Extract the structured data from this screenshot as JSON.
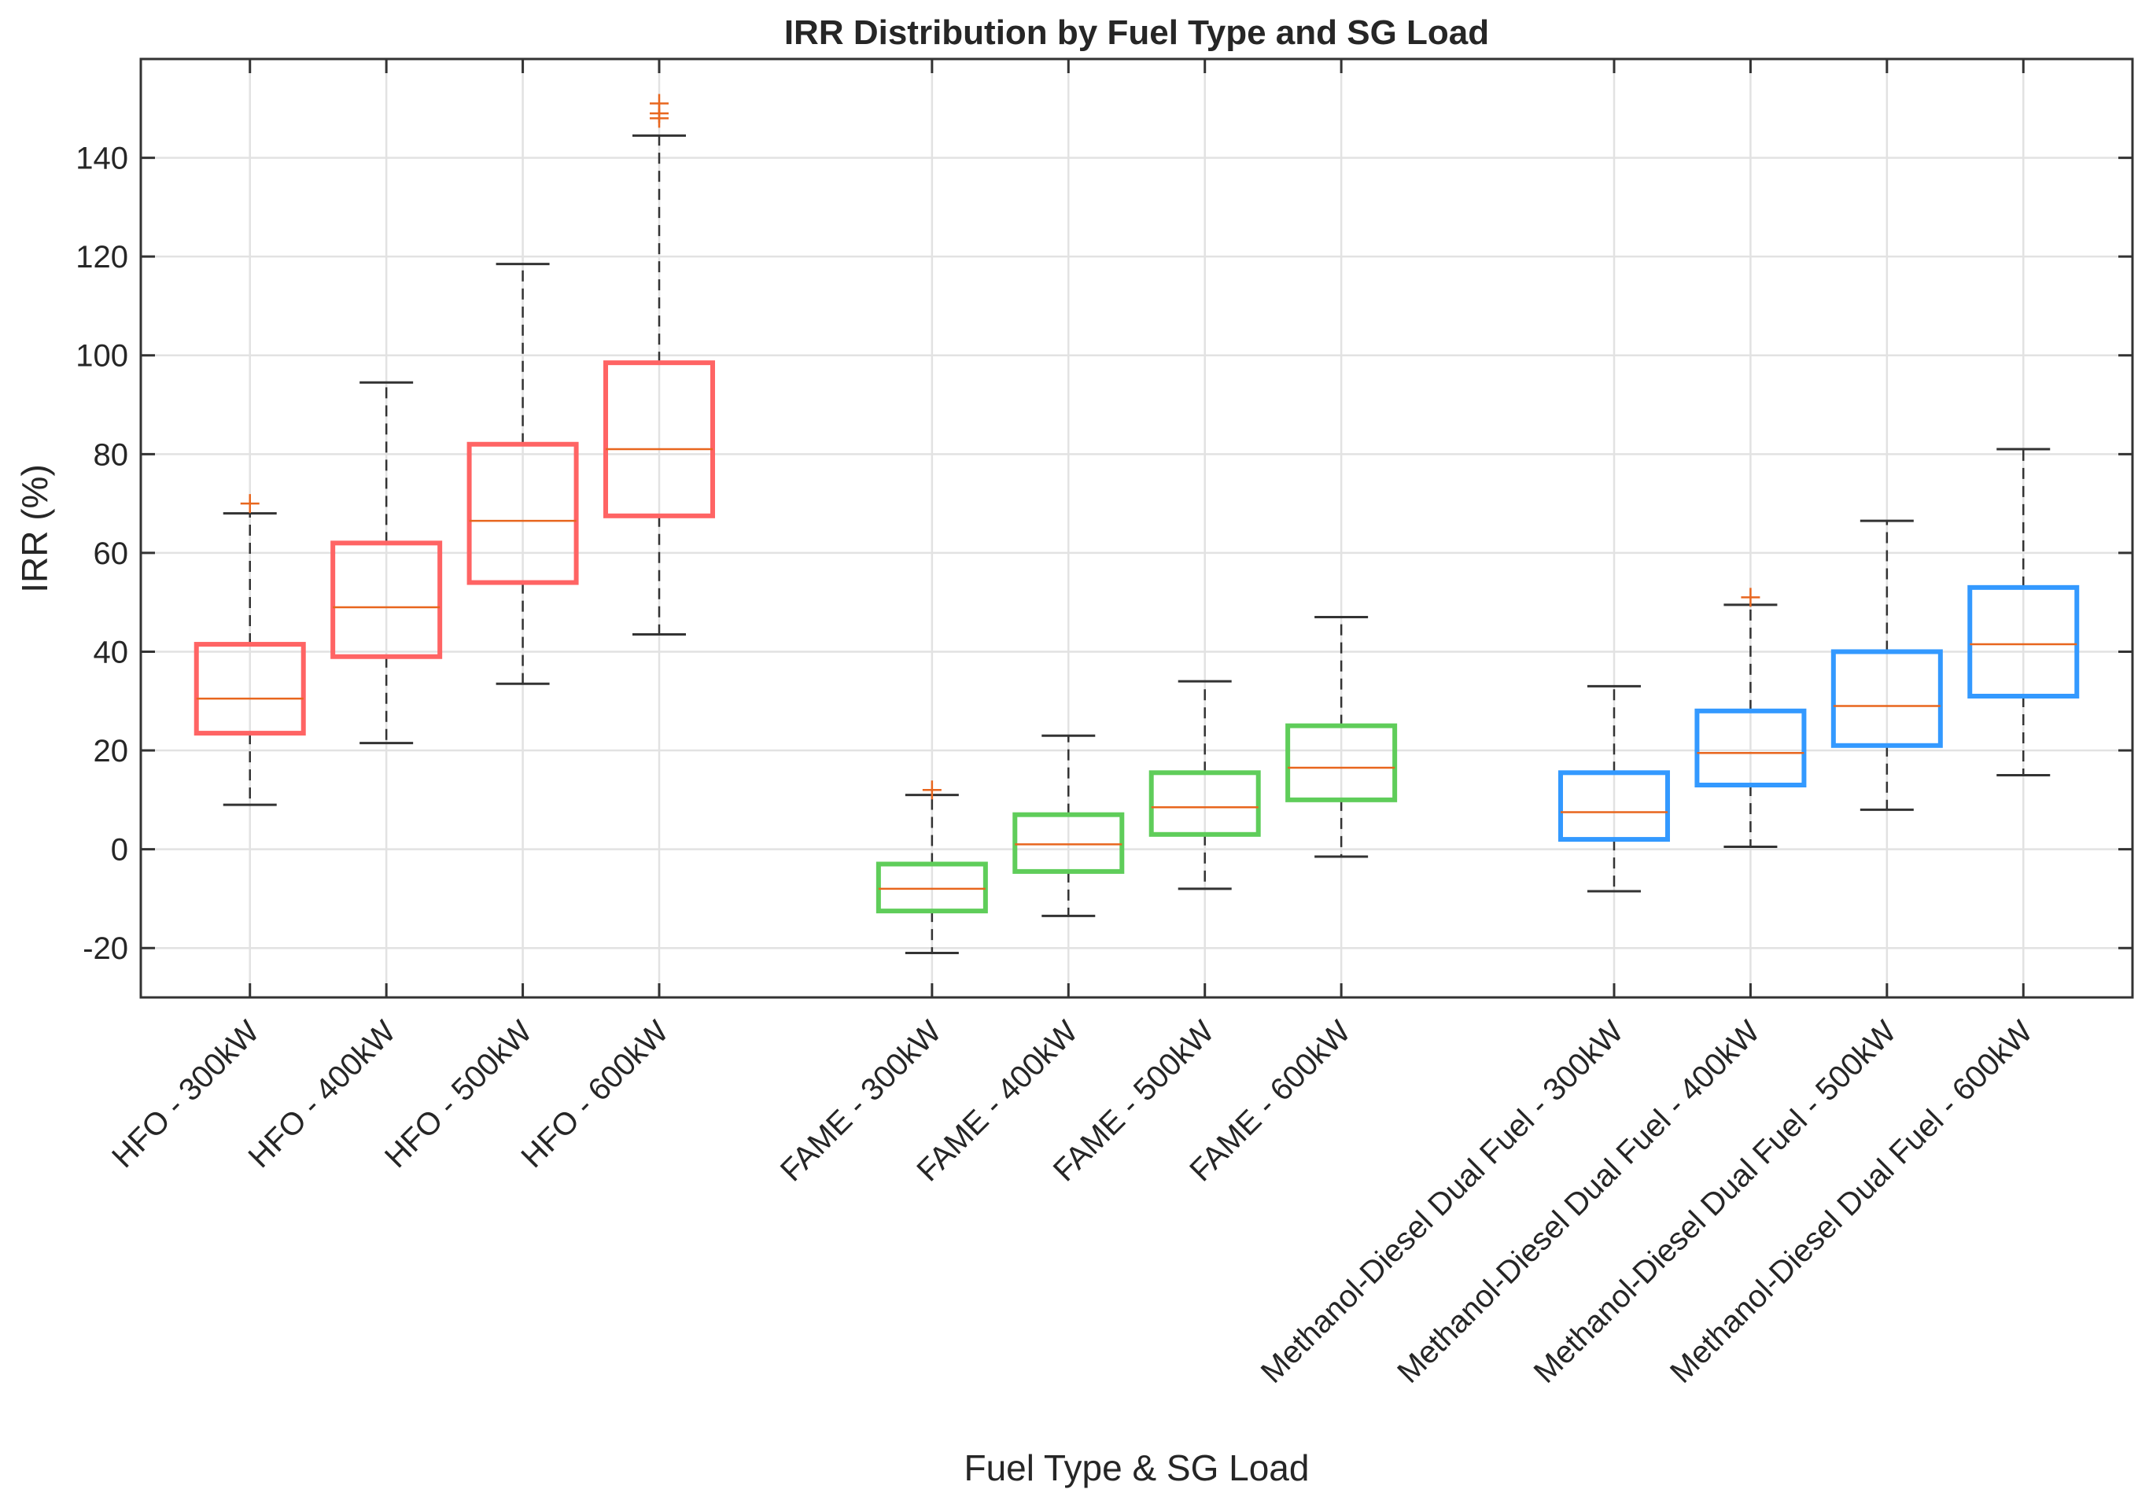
{
  "chart_data": {
    "type": "box",
    "title": "IRR Distribution by Fuel Type and SG Load",
    "xlabel": "Fuel Type & SG Load",
    "ylabel": "IRR (%)",
    "ylim": [
      -30,
      160
    ],
    "yticks": [
      -20,
      0,
      20,
      40,
      60,
      80,
      100,
      120,
      140
    ],
    "grid": true,
    "colors": {
      "HFO": "#ff6464",
      "FAME": "#5fcd5a",
      "Methanol-Diesel Dual Fuel": "#3399ff",
      "median": "#e8661e",
      "outlier": "#e8661e",
      "whisker": "#333333"
    },
    "series": [
      {
        "label": "HFO - 300kW",
        "group": "HFO",
        "pos": 1,
        "whisker_low": 9,
        "q1": 23.5,
        "median": 30.5,
        "q3": 41.5,
        "whisker_high": 68,
        "outliers": [
          70
        ]
      },
      {
        "label": "HFO - 400kW",
        "group": "HFO",
        "pos": 2,
        "whisker_low": 21.5,
        "q1": 39,
        "median": 49,
        "q3": 62,
        "whisker_high": 94.5,
        "outliers": []
      },
      {
        "label": "HFO - 500kW",
        "group": "HFO",
        "pos": 3,
        "whisker_low": 33.5,
        "q1": 54,
        "median": 66.5,
        "q3": 82,
        "whisker_high": 118.5,
        "outliers": []
      },
      {
        "label": "HFO - 600kW",
        "group": "HFO",
        "pos": 4,
        "whisker_low": 43.5,
        "q1": 67.5,
        "median": 81,
        "q3": 98.5,
        "whisker_high": 144.5,
        "outliers": [
          148,
          149,
          151
        ]
      },
      {
        "label": "FAME - 300kW",
        "group": "FAME",
        "pos": 6,
        "whisker_low": -21,
        "q1": -12.5,
        "median": -8,
        "q3": -3,
        "whisker_high": 11,
        "outliers": [
          12
        ]
      },
      {
        "label": "FAME - 400kW",
        "group": "FAME",
        "pos": 7,
        "whisker_low": -13.5,
        "q1": -4.5,
        "median": 1,
        "q3": 7,
        "whisker_high": 23,
        "outliers": []
      },
      {
        "label": "FAME - 500kW",
        "group": "FAME",
        "pos": 8,
        "whisker_low": -8,
        "q1": 3,
        "median": 8.5,
        "q3": 15.5,
        "whisker_high": 34,
        "outliers": []
      },
      {
        "label": "FAME - 600kW",
        "group": "FAME",
        "pos": 9,
        "whisker_low": -1.5,
        "q1": 10,
        "median": 16.5,
        "q3": 25,
        "whisker_high": 47,
        "outliers": []
      },
      {
        "label": "Methanol-Diesel Dual Fuel - 300kW",
        "group": "Methanol-Diesel Dual Fuel",
        "pos": 11,
        "whisker_low": -8.5,
        "q1": 2,
        "median": 7.5,
        "q3": 15.5,
        "whisker_high": 33,
        "outliers": []
      },
      {
        "label": "Methanol-Diesel Dual Fuel - 400kW",
        "group": "Methanol-Diesel Dual Fuel",
        "pos": 12,
        "whisker_low": 0.5,
        "q1": 13,
        "median": 19.5,
        "q3": 28,
        "whisker_high": 49.5,
        "outliers": [
          51
        ]
      },
      {
        "label": "Methanol-Diesel Dual Fuel - 500kW",
        "group": "Methanol-Diesel Dual Fuel",
        "pos": 13,
        "whisker_low": 8,
        "q1": 21,
        "median": 29,
        "q3": 40,
        "whisker_high": 66.5,
        "outliers": []
      },
      {
        "label": "Methanol-Diesel Dual Fuel - 600kW",
        "group": "Methanol-Diesel Dual Fuel",
        "pos": 14,
        "whisker_low": 15,
        "q1": 31,
        "median": 41.5,
        "q3": 53,
        "whisker_high": 81,
        "outliers": []
      }
    ],
    "xlim": [
      0.2,
      14.8
    ]
  }
}
